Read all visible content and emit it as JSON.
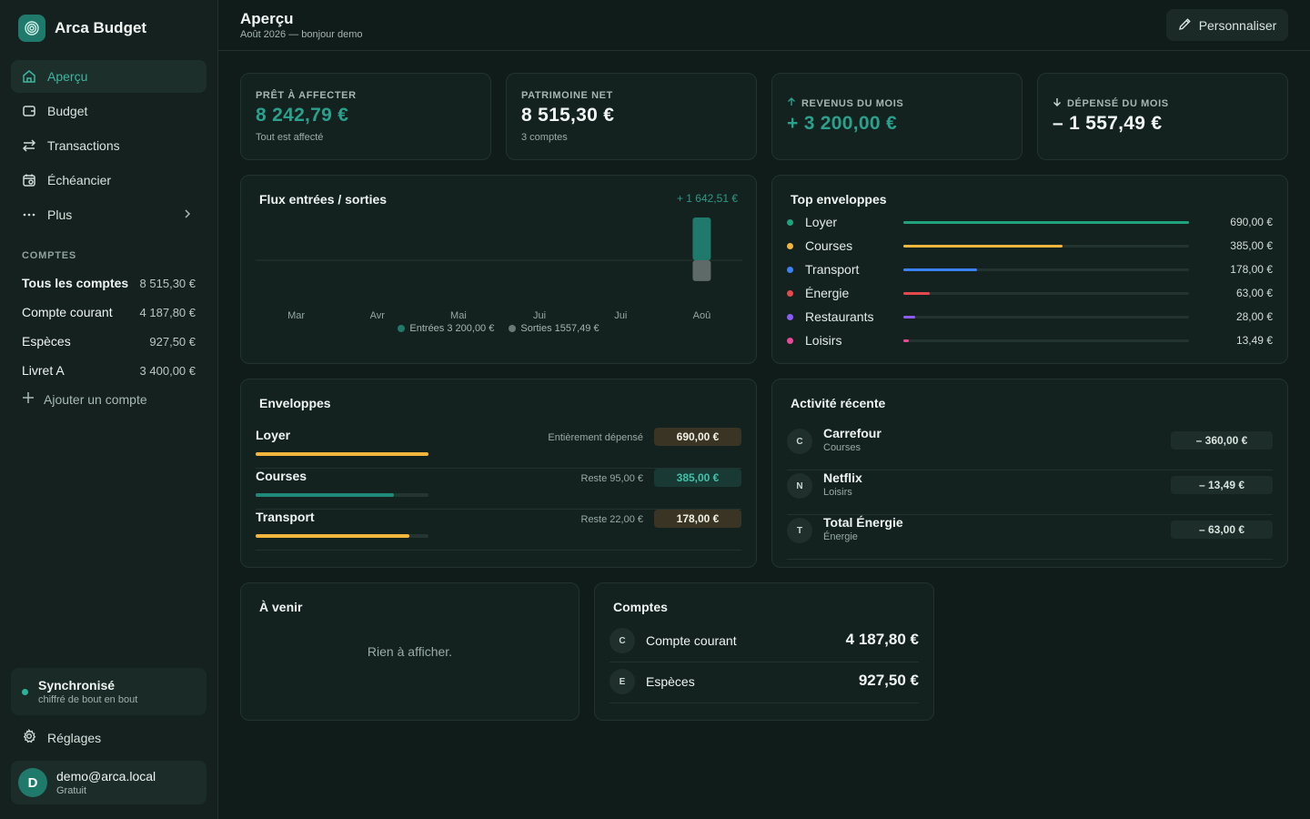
{
  "app": {
    "name": "Arca Budget"
  },
  "nav": [
    {
      "label": "Aperçu",
      "icon": "home-icon",
      "active": true
    },
    {
      "label": "Budget",
      "icon": "wallet-icon"
    },
    {
      "label": "Transactions",
      "icon": "arrows-icon"
    },
    {
      "label": "Échéancier",
      "icon": "calendar-icon"
    },
    {
      "label": "Plus",
      "icon": "more-icon"
    }
  ],
  "sidebar": {
    "accounts_label": "COMPTES",
    "accounts": [
      {
        "name": "Tous les comptes",
        "value": "8 515,30 €"
      },
      {
        "name": "Compte courant",
        "value": "4 187,80 €"
      },
      {
        "name": "Espèces",
        "value": "927,50 €"
      },
      {
        "name": "Livret A",
        "value": "3 400,00 €"
      }
    ],
    "add_account": "Ajouter un compte",
    "sync_title": "Synchronisé",
    "sync_sub": "chiffré de bout en bout",
    "settings": "Réglages",
    "user_initial": "D",
    "user_email": "demo@arca.local",
    "user_plan": "Gratuit"
  },
  "header": {
    "title": "Aperçu",
    "subtitle": "Août 2026 — bonjour demo",
    "customize": "Personnaliser"
  },
  "kpis": [
    {
      "label": "PRÊT À AFFECTER",
      "value": "8 242,79 €",
      "sub": "Tout est affecté",
      "color": "#2aa08d"
    },
    {
      "label": "PATRIMOINE NET",
      "value": "8 515,30 €",
      "sub": "3 comptes",
      "color": "#f1f6f4"
    },
    {
      "label": "REVENUS DU MOIS",
      "value": "+ 3 200,00 €",
      "color": "#2aa08d",
      "icon": "arrow-up-icon"
    },
    {
      "label": "DÉPENSÉ DU MOIS",
      "value": "– 1 557,49 €",
      "color": "#f1f6f4",
      "icon": "arrow-down-icon"
    }
  ],
  "flux": {
    "title": "Flux entrées / sorties",
    "delta": "+ 1 642,51 €",
    "legend_in": "Entrées 3 200,00 €",
    "legend_out": "Sorties 1557,49 €"
  },
  "chart_data": {
    "type": "bar",
    "categories": [
      "Mar",
      "Avr",
      "Mai",
      "Jui",
      "Jui",
      "Aoû"
    ],
    "series": [
      {
        "name": "Entrées",
        "values": [
          0,
          0,
          0,
          0,
          0,
          3200.0
        ],
        "color": "#1f7a6c"
      },
      {
        "name": "Sorties",
        "values": [
          0,
          0,
          0,
          0,
          0,
          -1557.49
        ],
        "color": "#5d6a67"
      }
    ],
    "ylim": [
      -3200,
      3200
    ]
  },
  "top_envelopes": {
    "title": "Top enveloppes",
    "items": [
      {
        "name": "Loyer",
        "amount": "690,00 €",
        "fraction": 1.0,
        "color": "#1fa37f"
      },
      {
        "name": "Courses",
        "amount": "385,00 €",
        "fraction": 0.558,
        "color": "#f2b63d"
      },
      {
        "name": "Transport",
        "amount": "178,00 €",
        "fraction": 0.258,
        "color": "#3b82f6"
      },
      {
        "name": "Énergie",
        "amount": "63,00 €",
        "fraction": 0.091,
        "color": "#e5484d"
      },
      {
        "name": "Restaurants",
        "amount": "28,00 €",
        "fraction": 0.041,
        "color": "#8b5cf6"
      },
      {
        "name": "Loisirs",
        "amount": "13,49 €",
        "fraction": 0.02,
        "color": "#ec4899"
      }
    ]
  },
  "envelopes": {
    "title": "Enveloppes",
    "items": [
      {
        "name": "Loyer",
        "status": "Entièrement dépensé",
        "amount": "690,00 €",
        "fraction": 1.0,
        "bar_color": "#f2b63d",
        "pill_bg": "#3a3424",
        "pill_color": "#f1f1e6"
      },
      {
        "name": "Courses",
        "status": "Reste 95,00 €",
        "amount": "385,00 €",
        "fraction": 0.8,
        "bar_color": "#1f8a7a",
        "pill_bg": "#193a34",
        "pill_color": "#3fc2ab"
      },
      {
        "name": "Transport",
        "status": "Reste 22,00 €",
        "amount": "178,00 €",
        "fraction": 0.89,
        "bar_color": "#f2b63d",
        "pill_bg": "#3a3424",
        "pill_color": "#f1f1e6"
      }
    ]
  },
  "activity": {
    "title": "Activité récente",
    "items": [
      {
        "initial": "C",
        "name": "Carrefour",
        "category": "Courses",
        "amount": "– 360,00 €"
      },
      {
        "initial": "N",
        "name": "Netflix",
        "category": "Loisirs",
        "amount": "– 13,49 €"
      },
      {
        "initial": "T",
        "name": "Total Énergie",
        "category": "Énergie",
        "amount": "– 63,00 €"
      }
    ]
  },
  "upcoming": {
    "title": "À venir",
    "empty": "Rien à afficher."
  },
  "accounts_card": {
    "title": "Comptes",
    "items": [
      {
        "initial": "C",
        "name": "Compte courant",
        "value": "4 187,80 €"
      },
      {
        "initial": "E",
        "name": "Espèces",
        "value": "927,50 €"
      }
    ]
  }
}
